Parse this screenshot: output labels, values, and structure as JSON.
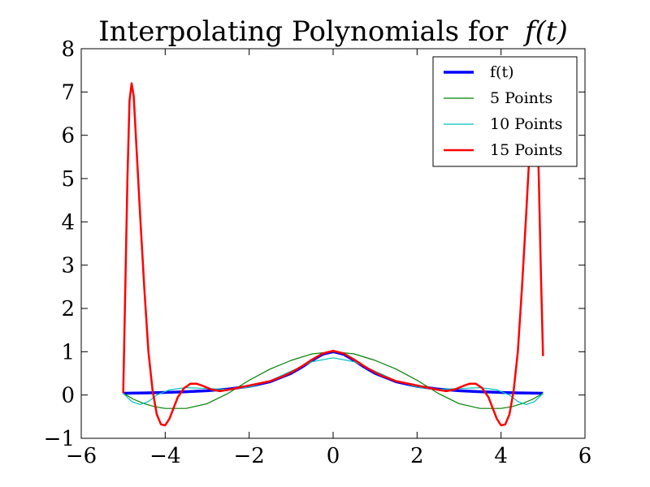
{
  "chart_data": {
    "type": "line",
    "title": "Interpolating Polynomials for",
    "title_math": "f(t)",
    "xlabel": "",
    "ylabel": "",
    "xlim": [
      -6,
      6
    ],
    "ylim": [
      -1,
      8
    ],
    "xticks": [
      -6,
      -4,
      -2,
      0,
      2,
      4,
      6
    ],
    "yticks": [
      -1,
      0,
      1,
      2,
      3,
      4,
      5,
      6,
      7,
      8
    ],
    "xtick_labels": [
      "−6",
      "−4",
      "−2",
      "0",
      "2",
      "4",
      "6"
    ],
    "ytick_labels": [
      "−1",
      "0",
      "1",
      "2",
      "3",
      "4",
      "5",
      "6",
      "7",
      "8"
    ],
    "grid": false,
    "legend_position": "top-right",
    "series": [
      {
        "name": "f(t)",
        "color": "#0000ff",
        "points": [
          [
            -5,
            0.04
          ],
          [
            -4.5,
            0.047
          ],
          [
            -4,
            0.059
          ],
          [
            -3.5,
            0.075
          ],
          [
            -3,
            0.1
          ],
          [
            -2.5,
            0.138
          ],
          [
            -2,
            0.2
          ],
          [
            -1.5,
            0.308
          ],
          [
            -1,
            0.5
          ],
          [
            -0.75,
            0.64
          ],
          [
            -0.5,
            0.8
          ],
          [
            -0.25,
            0.941
          ],
          [
            0,
            1
          ],
          [
            0.25,
            0.941
          ],
          [
            0.5,
            0.8
          ],
          [
            0.75,
            0.64
          ],
          [
            1,
            0.5
          ],
          [
            1.5,
            0.308
          ],
          [
            2,
            0.2
          ],
          [
            2.5,
            0.138
          ],
          [
            3,
            0.1
          ],
          [
            3.5,
            0.075
          ],
          [
            4,
            0.059
          ],
          [
            4.5,
            0.047
          ],
          [
            5,
            0.04
          ]
        ]
      },
      {
        "name": "5 Points",
        "color": "#008000",
        "points": [
          [
            -5,
            0.04
          ],
          [
            -4.75,
            -0.1
          ],
          [
            -4.5,
            -0.2
          ],
          [
            -4.25,
            -0.27
          ],
          [
            -4,
            -0.31
          ],
          [
            -3.5,
            -0.31
          ],
          [
            -3,
            -0.2
          ],
          [
            -2.5,
            0.04
          ],
          [
            -2,
            0.34
          ],
          [
            -1.5,
            0.6
          ],
          [
            -1,
            0.8
          ],
          [
            -0.5,
            0.95
          ],
          [
            0,
            1
          ],
          [
            0.5,
            0.95
          ],
          [
            1,
            0.8
          ],
          [
            1.5,
            0.6
          ],
          [
            2,
            0.34
          ],
          [
            2.5,
            0.04
          ],
          [
            3,
            -0.2
          ],
          [
            3.5,
            -0.31
          ],
          [
            4,
            -0.31
          ],
          [
            4.25,
            -0.27
          ],
          [
            4.5,
            -0.2
          ],
          [
            4.75,
            -0.1
          ],
          [
            5,
            0.04
          ]
        ]
      },
      {
        "name": "10 Points",
        "color": "#00bfbf",
        "points": [
          [
            -5,
            0.04
          ],
          [
            -4.8,
            -0.15
          ],
          [
            -4.6,
            -0.22
          ],
          [
            -4.4,
            -0.15
          ],
          [
            -4.2,
            0
          ],
          [
            -3.9,
            0.12
          ],
          [
            -3.5,
            0.17
          ],
          [
            -3,
            0.15
          ],
          [
            -2.5,
            0.13
          ],
          [
            -2,
            0.18
          ],
          [
            -1.5,
            0.33
          ],
          [
            -1,
            0.55
          ],
          [
            -0.5,
            0.77
          ],
          [
            0,
            0.86
          ],
          [
            0.5,
            0.77
          ],
          [
            1,
            0.55
          ],
          [
            1.5,
            0.33
          ],
          [
            2,
            0.18
          ],
          [
            2.5,
            0.13
          ],
          [
            3,
            0.15
          ],
          [
            3.5,
            0.17
          ],
          [
            3.9,
            0.12
          ],
          [
            4.2,
            0
          ],
          [
            4.4,
            -0.15
          ],
          [
            4.6,
            -0.22
          ],
          [
            4.8,
            -0.15
          ],
          [
            5,
            0.04
          ]
        ]
      },
      {
        "name": "15 Points",
        "color": "#ff0000",
        "points": [
          [
            -5,
            0.04
          ],
          [
            -4.95,
            2.5
          ],
          [
            -4.9,
            5
          ],
          [
            -4.85,
            6.8
          ],
          [
            -4.8,
            7.2
          ],
          [
            -4.75,
            6.9
          ],
          [
            -4.7,
            6
          ],
          [
            -4.6,
            4.2
          ],
          [
            -4.5,
            2.5
          ],
          [
            -4.4,
            1
          ],
          [
            -4.3,
            0.1
          ],
          [
            -4.2,
            -0.45
          ],
          [
            -4.1,
            -0.68
          ],
          [
            -4,
            -0.7
          ],
          [
            -3.9,
            -0.55
          ],
          [
            -3.8,
            -0.3
          ],
          [
            -3.7,
            -0.05
          ],
          [
            -3.55,
            0.16
          ],
          [
            -3.4,
            0.26
          ],
          [
            -3.25,
            0.26
          ],
          [
            -3.1,
            0.21
          ],
          [
            -2.9,
            0.13
          ],
          [
            -2.7,
            0.09
          ],
          [
            -2.5,
            0.12
          ],
          [
            -2.2,
            0.18
          ],
          [
            -2,
            0.22
          ],
          [
            -1.7,
            0.28
          ],
          [
            -1.5,
            0.32
          ],
          [
            -1.2,
            0.43
          ],
          [
            -1,
            0.52
          ],
          [
            -0.75,
            0.66
          ],
          [
            -0.5,
            0.82
          ],
          [
            -0.25,
            0.96
          ],
          [
            0,
            1.02
          ],
          [
            0.25,
            0.96
          ],
          [
            0.5,
            0.82
          ],
          [
            0.75,
            0.66
          ],
          [
            1,
            0.52
          ],
          [
            1.2,
            0.43
          ],
          [
            1.5,
            0.32
          ],
          [
            1.7,
            0.28
          ],
          [
            2,
            0.22
          ],
          [
            2.2,
            0.18
          ],
          [
            2.5,
            0.12
          ],
          [
            2.7,
            0.09
          ],
          [
            2.9,
            0.13
          ],
          [
            3.1,
            0.21
          ],
          [
            3.25,
            0.26
          ],
          [
            3.4,
            0.26
          ],
          [
            3.55,
            0.16
          ],
          [
            3.7,
            -0.05
          ],
          [
            3.8,
            -0.3
          ],
          [
            3.9,
            -0.55
          ],
          [
            4,
            -0.7
          ],
          [
            4.1,
            -0.68
          ],
          [
            4.2,
            -0.45
          ],
          [
            4.3,
            0.1
          ],
          [
            4.4,
            1
          ],
          [
            4.5,
            2.5
          ],
          [
            4.6,
            4.2
          ],
          [
            4.7,
            6
          ],
          [
            4.75,
            6.9
          ],
          [
            4.8,
            7.2
          ],
          [
            4.85,
            6.8
          ],
          [
            4.9,
            5
          ],
          [
            4.95,
            2.8
          ],
          [
            5,
            0.9
          ]
        ]
      }
    ]
  }
}
